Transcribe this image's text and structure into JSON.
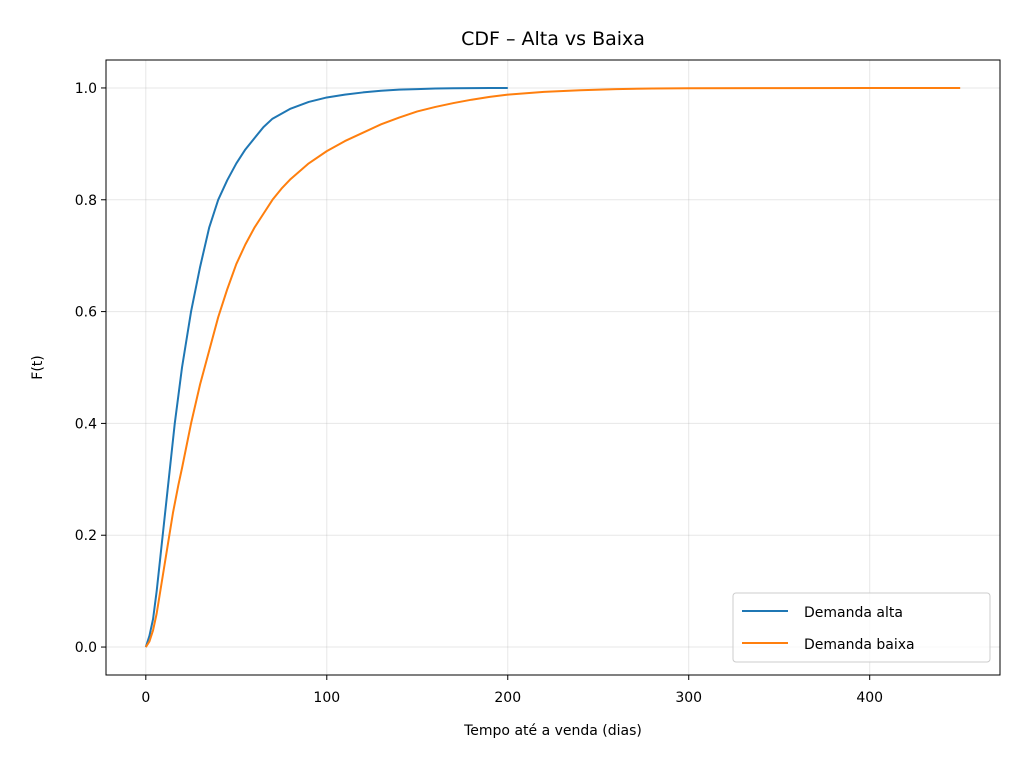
{
  "chart_data": {
    "type": "line",
    "title": "CDF – Alta vs Baixa",
    "xlabel": "Tempo até a venda (dias)",
    "ylabel": "F(t)",
    "xlim": [
      -22,
      472
    ],
    "ylim": [
      -0.05,
      1.05
    ],
    "xticks": [
      0,
      100,
      200,
      300,
      400
    ],
    "yticks": [
      0.0,
      0.2,
      0.4,
      0.6,
      0.8,
      1.0
    ],
    "xtick_labels": [
      "0",
      "100",
      "200",
      "300",
      "400"
    ],
    "ytick_labels": [
      "0.0",
      "0.2",
      "0.4",
      "0.6",
      "0.8",
      "1.0"
    ],
    "grid": true,
    "legend_position": "lower right",
    "series": [
      {
        "name": "Demanda alta",
        "color": "#1f77b4",
        "x": [
          0,
          2,
          4,
          6,
          8,
          10,
          12,
          14,
          16,
          18,
          20,
          25,
          30,
          35,
          40,
          45,
          50,
          55,
          60,
          65,
          70,
          80,
          90,
          100,
          110,
          120,
          130,
          140,
          150,
          160,
          170,
          180,
          190,
          200
        ],
        "y": [
          0.0,
          0.02,
          0.05,
          0.1,
          0.16,
          0.22,
          0.28,
          0.34,
          0.4,
          0.45,
          0.5,
          0.6,
          0.68,
          0.75,
          0.8,
          0.835,
          0.865,
          0.89,
          0.91,
          0.93,
          0.945,
          0.963,
          0.975,
          0.983,
          0.988,
          0.992,
          0.995,
          0.997,
          0.998,
          0.999,
          0.9995,
          0.9998,
          1.0,
          1.0
        ]
      },
      {
        "name": "Demanda baixa",
        "color": "#ff7f0e",
        "x": [
          0,
          2,
          4,
          6,
          8,
          10,
          12,
          15,
          18,
          20,
          25,
          30,
          35,
          40,
          45,
          50,
          55,
          60,
          65,
          70,
          75,
          80,
          90,
          100,
          110,
          120,
          130,
          140,
          150,
          160,
          170,
          180,
          190,
          200,
          220,
          240,
          260,
          280,
          300,
          350,
          400,
          450
        ],
        "y": [
          0.0,
          0.01,
          0.03,
          0.06,
          0.1,
          0.14,
          0.18,
          0.24,
          0.29,
          0.32,
          0.4,
          0.47,
          0.53,
          0.59,
          0.64,
          0.685,
          0.72,
          0.75,
          0.775,
          0.8,
          0.82,
          0.837,
          0.865,
          0.887,
          0.905,
          0.92,
          0.935,
          0.947,
          0.958,
          0.966,
          0.973,
          0.979,
          0.984,
          0.988,
          0.993,
          0.996,
          0.998,
          0.999,
          0.9995,
          0.9998,
          0.9999,
          1.0
        ]
      }
    ]
  }
}
